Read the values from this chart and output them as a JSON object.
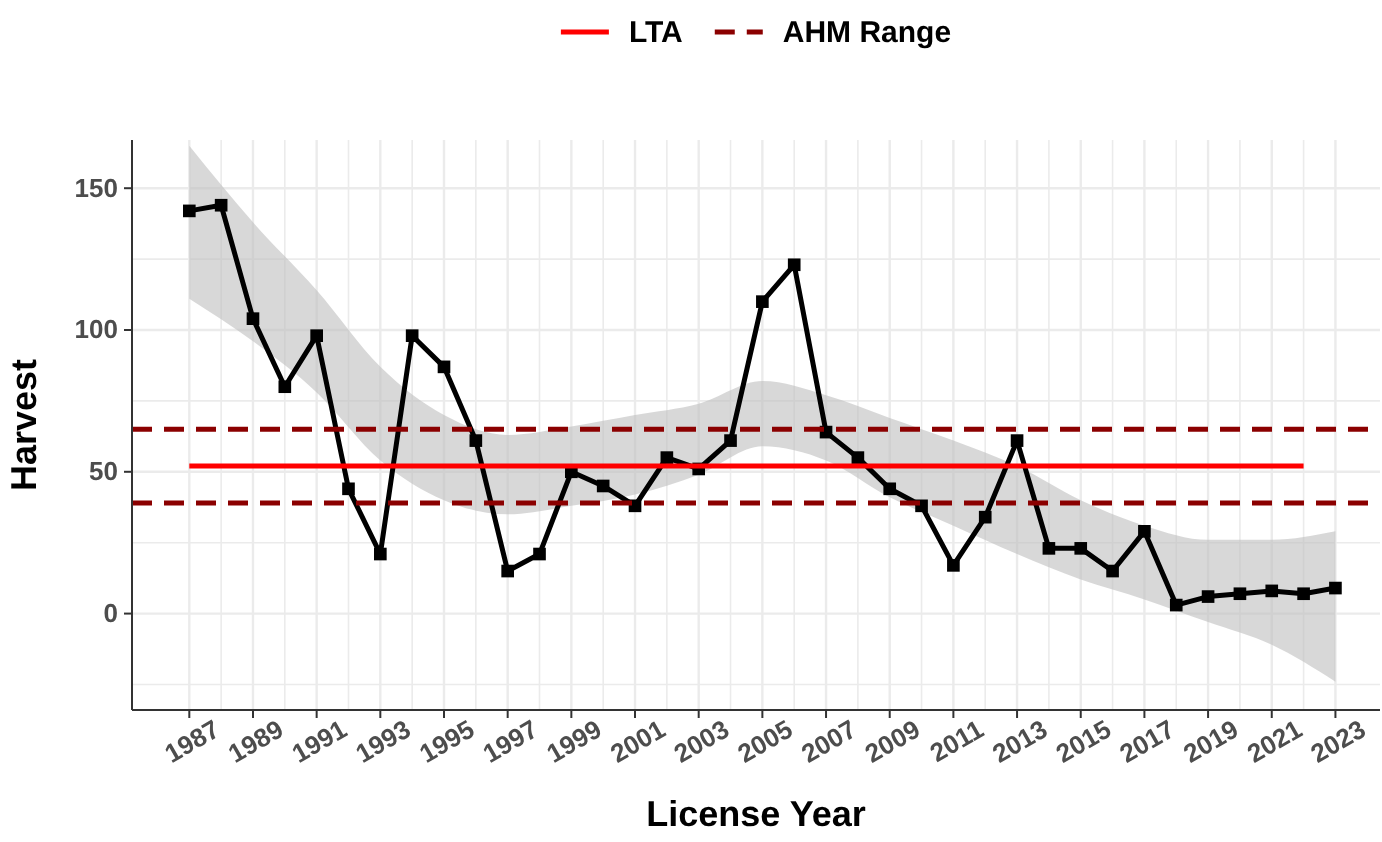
{
  "chart_data": {
    "type": "line",
    "xlabel": "License Year",
    "ylabel": "Harvest",
    "xlim": [
      1985.2,
      2024.4
    ],
    "ylim": [
      -34,
      167
    ],
    "xticks": [
      1987,
      {
        "value": 1988,
        "label": null
      },
      1989,
      {
        "value": 1990,
        "label": null
      },
      1991,
      {
        "value": 1992,
        "label": null
      },
      1993,
      {
        "value": 1994,
        "label": null
      },
      1995,
      {
        "value": 1996,
        "label": null
      },
      1997,
      {
        "value": 1998,
        "label": null
      },
      1999,
      {
        "value": 2000,
        "label": null
      },
      2001,
      {
        "value": 2002,
        "label": null
      },
      2003,
      {
        "value": 2004,
        "label": null
      },
      2005,
      {
        "value": 2006,
        "label": null
      },
      2007,
      {
        "value": 2008,
        "label": null
      },
      2009,
      {
        "value": 2010,
        "label": null
      },
      2011,
      {
        "value": 2012,
        "label": null
      },
      2013,
      {
        "value": 2014,
        "label": null
      },
      2015,
      {
        "value": 2016,
        "label": null
      },
      2017,
      {
        "value": 2018,
        "label": null
      },
      2019,
      {
        "value": 2020,
        "label": null
      },
      2021,
      {
        "value": 2022,
        "label": null
      },
      2023
    ],
    "yticks": [
      {
        "value": -25,
        "label": null
      },
      0,
      {
        "value": 25,
        "label": null
      },
      50,
      {
        "value": 75,
        "label": null
      },
      100,
      {
        "value": 125,
        "label": null
      },
      150
    ],
    "grid": true,
    "legend": "top",
    "marker": "square",
    "series": [
      {
        "type": "area",
        "color": "#bebebe",
        "x": [
          1987,
          1989,
          1991,
          1993,
          1995,
          1997,
          1999,
          2001,
          2003,
          2005,
          2007,
          2009,
          2011,
          2013,
          2015,
          2017,
          2019,
          2021,
          2023
        ],
        "values": [
          null,
          null,
          null,
          null,
          null,
          null,
          null,
          null,
          null,
          null,
          null,
          null,
          null,
          null,
          null,
          null,
          null,
          null,
          null
        ],
        "lower": [
          111,
          96,
          78,
          54,
          40,
          35,
          38,
          42,
          49,
          59,
          54,
          41,
          31,
          21,
          12,
          5,
          -3,
          -11,
          -24
        ],
        "upper": [
          165,
          138,
          114,
          87,
          70,
          63,
          66,
          70,
          74,
          82,
          77,
          69,
          61,
          52,
          40,
          31,
          26,
          26,
          29
        ]
      },
      {
        "color": "#000000",
        "x": [
          1987,
          1988,
          1989,
          1990,
          1991,
          1992,
          1993,
          1994,
          1995,
          1996,
          1997,
          1998,
          1999,
          2000,
          2001,
          2002,
          2003,
          2004,
          2005,
          2006,
          2007,
          2008,
          2009,
          2010,
          2011,
          2012,
          2013,
          2014,
          2015,
          2016,
          2017,
          2018,
          2019,
          2020,
          2021,
          2022,
          2023
        ],
        "values": [
          142,
          144,
          104,
          80,
          98,
          44,
          21,
          98,
          87,
          61,
          15,
          21,
          50,
          45,
          38,
          55,
          51,
          61,
          110,
          123,
          64,
          55,
          44,
          38,
          17,
          34,
          61,
          23,
          23,
          15,
          29,
          3,
          6,
          7,
          8,
          7,
          9
        ]
      },
      {
        "type": "line",
        "name": "LTA",
        "color": "#ff0000",
        "marker": "none",
        "x": [
          1987,
          2022
        ],
        "values": [
          52,
          52
        ]
      }
    ],
    "ref_lines": [
      {
        "axis": "y",
        "value": 65,
        "label": "AHM Range",
        "color": "#8b0000",
        "line_style": "dashed"
      },
      {
        "axis": "y",
        "value": 39,
        "label": null,
        "color": "#8b0000",
        "line_style": "dashed"
      }
    ]
  }
}
